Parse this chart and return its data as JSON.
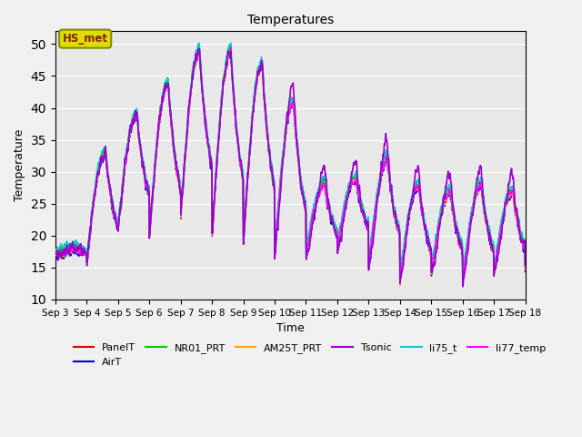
{
  "title": "Temperatures",
  "xlabel": "Time",
  "ylabel": "Temperature",
  "ylim": [
    10,
    52
  ],
  "yticks": [
    10,
    15,
    20,
    25,
    30,
    35,
    40,
    45,
    50
  ],
  "fig_bg": "#f0f0f0",
  "ax_bg": "#e8e8e8",
  "series": {
    "PanelT": {
      "color": "#dd0000",
      "lw": 1.0,
      "zorder": 3
    },
    "AirT": {
      "color": "#0000cc",
      "lw": 1.0,
      "zorder": 3
    },
    "NR01_PRT": {
      "color": "#00cc00",
      "lw": 1.0,
      "zorder": 3
    },
    "AM25T_PRT": {
      "color": "#ffaa00",
      "lw": 1.0,
      "zorder": 3
    },
    "Tsonic": {
      "color": "#9900cc",
      "lw": 1.2,
      "zorder": 4
    },
    "li75_t": {
      "color": "#00cccc",
      "lw": 1.0,
      "zorder": 3
    },
    "li77_temp": {
      "color": "#ff00ff",
      "lw": 1.0,
      "zorder": 3
    }
  },
  "annotation_text": "HS_met",
  "annotation_box_color": "#dddd00",
  "annotation_text_color": "#882200",
  "annotation_box_edge_color": "#888800",
  "xtick_labels": [
    "Sep 3",
    "Sep 4",
    "Sep 5",
    "Sep 6",
    "Sep 7",
    "Sep 8",
    "Sep 9",
    "Sep 10",
    "Sep 11",
    "Sep 12",
    "Sep 13",
    "Sep 14",
    "Sep 15",
    "Sep 16",
    "Sep 17",
    "Sep 18"
  ],
  "xtick_positions": [
    0,
    1,
    2,
    3,
    4,
    5,
    6,
    7,
    8,
    9,
    10,
    11,
    12,
    13,
    14,
    15
  ]
}
